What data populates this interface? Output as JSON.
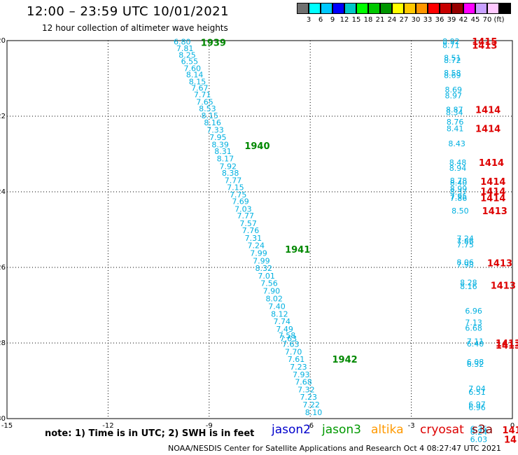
{
  "header": {
    "title": "12:00 – 23:59 UTC 10/01/2021",
    "subtitle": "12 hour collection of altimeter wave heights"
  },
  "colorbar": {
    "colors": [
      "#707070",
      "#00ffff",
      "#00c8ff",
      "#0000ff",
      "#00c8c8",
      "#00ff00",
      "#00c800",
      "#009600",
      "#ffff00",
      "#ffc800",
      "#ff9600",
      "#ff0000",
      "#c80000",
      "#960000",
      "#ff00ff",
      "#c8a0ff",
      "#ffc8ff",
      "#000000"
    ],
    "ticks": [
      "3",
      "6",
      "9",
      "12",
      "15",
      "18",
      "21",
      "24",
      "27",
      "30",
      "33",
      "36",
      "39",
      "42",
      "45",
      "70",
      "(ft)"
    ]
  },
  "footer": {
    "note": "note:  1) Time is in UTC;  2) SWH is in feet",
    "credit": "NOAA/NESDIS Center for Satellite Applications and Research     Oct  4 08:27:47 UTC 2021"
  },
  "legend": [
    {
      "name": "jason2",
      "color": "#0000cc"
    },
    {
      "name": "jason3",
      "color": "#009900"
    },
    {
      "name": "altika",
      "color": "#ff9900"
    },
    {
      "name": "cryosat",
      "color": "#dd0000"
    },
    {
      "name": "s3a",
      "color": "#880000"
    }
  ],
  "chart_data": {
    "type": "scatter",
    "xlim": [
      -15,
      0
    ],
    "ylim": [
      -30,
      -20
    ],
    "x_ticks": [
      "-15",
      "-12",
      "-9",
      "-6",
      "-3",
      "0"
    ],
    "y_ticks": [
      "-20",
      "-22",
      "-24",
      "-26",
      "-28",
      "-30"
    ],
    "x_tick_values": [
      -15,
      -12,
      -9,
      -6,
      -3,
      0
    ],
    "y_tick_values": [
      -20,
      -22,
      -24,
      -26,
      -28,
      -30
    ],
    "grid": true,
    "series": [
      {
        "name": "jason3",
        "color": "#00b0e0",
        "values": [
          {
            "x": -9.8,
            "y": -20.03,
            "label": "6.80"
          },
          {
            "x": -9.72,
            "y": -20.2,
            "label": "7.81"
          },
          {
            "x": -9.65,
            "y": -20.38,
            "label": "8.25"
          },
          {
            "x": -9.58,
            "y": -20.55,
            "label": "6.55"
          },
          {
            "x": -9.5,
            "y": -20.73,
            "label": "7.60"
          },
          {
            "x": -9.43,
            "y": -20.9,
            "label": "8.14"
          },
          {
            "x": -9.35,
            "y": -21.08,
            "label": "8.15"
          },
          {
            "x": -9.28,
            "y": -21.25,
            "label": "7.67"
          },
          {
            "x": -9.2,
            "y": -21.43,
            "label": "7.71"
          },
          {
            "x": -9.13,
            "y": -21.62,
            "label": "7.65"
          },
          {
            "x": -9.05,
            "y": -21.8,
            "label": "8.53"
          },
          {
            "x": -8.98,
            "y": -21.98,
            "label": "8.15"
          },
          {
            "x": -8.9,
            "y": -22.17,
            "label": "8.16"
          },
          {
            "x": -8.82,
            "y": -22.36,
            "label": "7.33"
          },
          {
            "x": -8.74,
            "y": -22.56,
            "label": "7.95"
          },
          {
            "x": -8.67,
            "y": -22.75,
            "label": "8.39"
          },
          {
            "x": -8.59,
            "y": -22.93,
            "label": "8.31"
          },
          {
            "x": -8.52,
            "y": -23.12,
            "label": "8.17"
          },
          {
            "x": -8.44,
            "y": -23.32,
            "label": "7.92"
          },
          {
            "x": -8.37,
            "y": -23.5,
            "label": "8.38"
          },
          {
            "x": -8.29,
            "y": -23.69,
            "label": "7.77"
          },
          {
            "x": -8.22,
            "y": -23.88,
            "label": "7.15"
          },
          {
            "x": -8.14,
            "y": -24.07,
            "label": "7.75"
          },
          {
            "x": -8.07,
            "y": -24.25,
            "label": "7.69"
          },
          {
            "x": -7.99,
            "y": -24.45,
            "label": "7.03"
          },
          {
            "x": -7.92,
            "y": -24.63,
            "label": "7.77"
          },
          {
            "x": -7.84,
            "y": -24.83,
            "label": "7.57"
          },
          {
            "x": -7.77,
            "y": -25.02,
            "label": "7.76"
          },
          {
            "x": -7.69,
            "y": -25.22,
            "label": "7.31"
          },
          {
            "x": -7.61,
            "y": -25.42,
            "label": "7.24"
          },
          {
            "x": -7.53,
            "y": -25.62,
            "label": "7.99"
          },
          {
            "x": -7.45,
            "y": -25.82,
            "label": "7.99"
          },
          {
            "x": -7.38,
            "y": -26.02,
            "label": "8.32"
          },
          {
            "x": -7.3,
            "y": -26.22,
            "label": "7.01"
          },
          {
            "x": -7.22,
            "y": -26.42,
            "label": "7.56"
          },
          {
            "x": -7.15,
            "y": -26.62,
            "label": "7.90"
          },
          {
            "x": -7.07,
            "y": -26.82,
            "label": "8.02"
          },
          {
            "x": -6.99,
            "y": -27.03,
            "label": "7.40"
          },
          {
            "x": -6.91,
            "y": -27.23,
            "label": "8.12"
          },
          {
            "x": -6.84,
            "y": -27.43,
            "label": "7.74"
          },
          {
            "x": -6.76,
            "y": -27.63,
            "label": "7.49"
          },
          {
            "x": -6.69,
            "y": -27.8,
            "label": "7.58"
          },
          {
            "x": -6.65,
            "y": -27.88,
            "label": "7.63"
          },
          {
            "x": -6.58,
            "y": -28.03,
            "label": "7.63"
          },
          {
            "x": -6.5,
            "y": -28.23,
            "label": "7.70"
          },
          {
            "x": -6.42,
            "y": -28.43,
            "label": "7.61"
          },
          {
            "x": -6.35,
            "y": -28.63,
            "label": "7.23"
          },
          {
            "x": -6.27,
            "y": -28.83,
            "label": "7.93"
          },
          {
            "x": -6.2,
            "y": -29.03,
            "label": "7.68"
          },
          {
            "x": -6.12,
            "y": -29.23,
            "label": "7.32"
          },
          {
            "x": -6.05,
            "y": -29.43,
            "label": "7.23"
          },
          {
            "x": -5.97,
            "y": -29.63,
            "label": "7.22"
          },
          {
            "x": -5.9,
            "y": -29.83,
            "label": "8.10"
          }
        ]
      },
      {
        "name": "cryosat",
        "color": "#00b0e0",
        "values": [
          {
            "x": -1.82,
            "y": -20.02,
            "label": "8.92"
          },
          {
            "x": -1.82,
            "y": -20.12,
            "label": "8.71"
          },
          {
            "x": -1.78,
            "y": -20.45,
            "label": "8.51"
          },
          {
            "x": -1.78,
            "y": -20.52,
            "label": "8.72"
          },
          {
            "x": -1.78,
            "y": -20.85,
            "label": "8.58"
          },
          {
            "x": -1.78,
            "y": -20.92,
            "label": "8.69"
          },
          {
            "x": -1.75,
            "y": -21.3,
            "label": "8.69"
          },
          {
            "x": -1.75,
            "y": -21.45,
            "label": "8.97"
          },
          {
            "x": -1.72,
            "y": -21.82,
            "label": "8.87"
          },
          {
            "x": -1.72,
            "y": -21.9,
            "label": "8.34"
          },
          {
            "x": -1.7,
            "y": -22.15,
            "label": "8.76"
          },
          {
            "x": -1.7,
            "y": -22.32,
            "label": "8.41"
          },
          {
            "x": -1.65,
            "y": -22.72,
            "label": "8.43"
          },
          {
            "x": -1.62,
            "y": -23.22,
            "label": "8.48"
          },
          {
            "x": -1.62,
            "y": -23.37,
            "label": "8.94"
          },
          {
            "x": -1.6,
            "y": -23.7,
            "label": "8.78"
          },
          {
            "x": -1.6,
            "y": -23.76,
            "label": "8.40"
          },
          {
            "x": -1.6,
            "y": -23.92,
            "label": "8.99"
          },
          {
            "x": -1.6,
            "y": -24.0,
            "label": "8.37"
          },
          {
            "x": -1.6,
            "y": -24.12,
            "label": "7.95"
          },
          {
            "x": -1.6,
            "y": -24.17,
            "label": "7.86"
          },
          {
            "x": -1.55,
            "y": -24.5,
            "label": "8.50"
          },
          {
            "x": -1.4,
            "y": -25.23,
            "label": "7.24"
          },
          {
            "x": -1.4,
            "y": -25.31,
            "label": "7.86"
          },
          {
            "x": -1.4,
            "y": -25.4,
            "label": "7.75"
          },
          {
            "x": -1.4,
            "y": -25.86,
            "label": "8.06"
          },
          {
            "x": -1.4,
            "y": -25.93,
            "label": "7.98"
          },
          {
            "x": -1.3,
            "y": -26.4,
            "label": "8.28"
          },
          {
            "x": -1.3,
            "y": -26.5,
            "label": "8.16"
          },
          {
            "x": -1.15,
            "y": -27.15,
            "label": "6.96"
          },
          {
            "x": -1.15,
            "y": -27.45,
            "label": "7.13"
          },
          {
            "x": -1.15,
            "y": -27.6,
            "label": "6.68"
          },
          {
            "x": -1.1,
            "y": -27.95,
            "label": "7.11"
          },
          {
            "x": -1.1,
            "y": -28.02,
            "label": "6.40"
          },
          {
            "x": -1.1,
            "y": -28.5,
            "label": "6.08"
          },
          {
            "x": -1.1,
            "y": -28.56,
            "label": "6.32"
          },
          {
            "x": -1.05,
            "y": -29.2,
            "label": "7.04"
          },
          {
            "x": -1.05,
            "y": -29.3,
            "label": "6.51"
          },
          {
            "x": -1.05,
            "y": -29.62,
            "label": "6.97"
          },
          {
            "x": -1.05,
            "y": -29.7,
            "label": "6.96"
          },
          {
            "x": -1.0,
            "y": -30.27,
            "label": "6.35"
          },
          {
            "x": -1.0,
            "y": -30.35,
            "label": "6.24"
          },
          {
            "x": -1.0,
            "y": -30.55,
            "label": "6.03"
          }
        ]
      }
    ],
    "annotations": [
      {
        "text": "1939",
        "x": -9.25,
        "y": -20.05,
        "color": "#008800"
      },
      {
        "text": "1940",
        "x": -7.95,
        "y": -22.78,
        "color": "#008800"
      },
      {
        "text": "1941",
        "x": -6.75,
        "y": -25.52,
        "color": "#008800"
      },
      {
        "text": "1942",
        "x": -5.35,
        "y": -28.43,
        "color": "#008800"
      },
      {
        "text": "1415",
        "x": -1.2,
        "y": -20.02,
        "color": "#dd0000"
      },
      {
        "text": "1413",
        "x": -1.2,
        "y": -20.12,
        "color": "#dd0000"
      },
      {
        "text": "1414",
        "x": -1.1,
        "y": -21.82,
        "color": "#dd0000"
      },
      {
        "text": "1414",
        "x": -1.1,
        "y": -22.32,
        "color": "#dd0000"
      },
      {
        "text": "1414",
        "x": -1.0,
        "y": -23.22,
        "color": "#dd0000"
      },
      {
        "text": "1414",
        "x": -0.95,
        "y": -23.72,
        "color": "#dd0000"
      },
      {
        "text": "1414",
        "x": -0.95,
        "y": -23.98,
        "color": "#dd0000"
      },
      {
        "text": "1414",
        "x": -0.95,
        "y": -24.16,
        "color": "#dd0000"
      },
      {
        "text": "1413",
        "x": -0.9,
        "y": -24.5,
        "color": "#dd0000"
      },
      {
        "text": "1413",
        "x": -0.75,
        "y": -25.88,
        "color": "#dd0000"
      },
      {
        "text": "1413",
        "x": -0.65,
        "y": -26.47,
        "color": "#dd0000"
      },
      {
        "text": "1413",
        "x": -0.5,
        "y": -28.0,
        "color": "#dd0000"
      },
      {
        "text": "1413",
        "x": -0.5,
        "y": -28.06,
        "color": "#dd0000"
      },
      {
        "text": "141",
        "x": -0.3,
        "y": -30.3,
        "color": "#dd0000"
      },
      {
        "text": "14",
        "x": -0.25,
        "y": -30.55,
        "color": "#dd0000"
      }
    ]
  }
}
